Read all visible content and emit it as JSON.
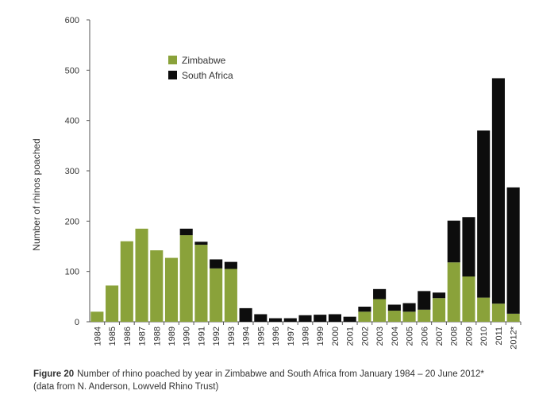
{
  "chart_data": {
    "type": "bar",
    "stacked": true,
    "ylabel": "Number of rhinos poached",
    "ylim": [
      0,
      600
    ],
    "yticks": [
      0,
      100,
      200,
      300,
      400,
      500,
      600
    ],
    "grid": false,
    "legend_position": "top-left",
    "categories": [
      "1984",
      "1985",
      "1986",
      "1987",
      "1988",
      "1989",
      "1990",
      "1991",
      "1992",
      "1993",
      "1994",
      "1995",
      "1996",
      "1997",
      "1998",
      "1999",
      "2000",
      "2001",
      "2002",
      "2003",
      "2004",
      "2005",
      "2006",
      "2007",
      "2008",
      "2009",
      "2010",
      "2011",
      "2012*"
    ],
    "series": [
      {
        "name": "Zimbabwe",
        "color": "#8aa23a",
        "values": [
          20,
          72,
          160,
          185,
          142,
          127,
          172,
          153,
          106,
          105,
          0,
          0,
          0,
          0,
          0,
          0,
          0,
          0,
          20,
          45,
          22,
          20,
          24,
          47,
          118,
          90,
          48,
          36,
          16
        ]
      },
      {
        "name": "South Africa",
        "color": "#0d0d0d",
        "values": [
          0,
          0,
          0,
          0,
          0,
          0,
          13,
          6,
          18,
          14,
          27,
          15,
          7,
          7,
          13,
          14,
          15,
          10,
          10,
          20,
          12,
          17,
          37,
          11,
          83,
          118,
          332,
          448,
          251
        ]
      }
    ]
  },
  "caption": {
    "figure_label": "Figure 20",
    "text": "Number of rhino poached by year in Zimbabwe and South Africa from January 1984 – 20 June 2012*",
    "source": "(data from N. Anderson, Lowveld Rhino Trust)"
  }
}
